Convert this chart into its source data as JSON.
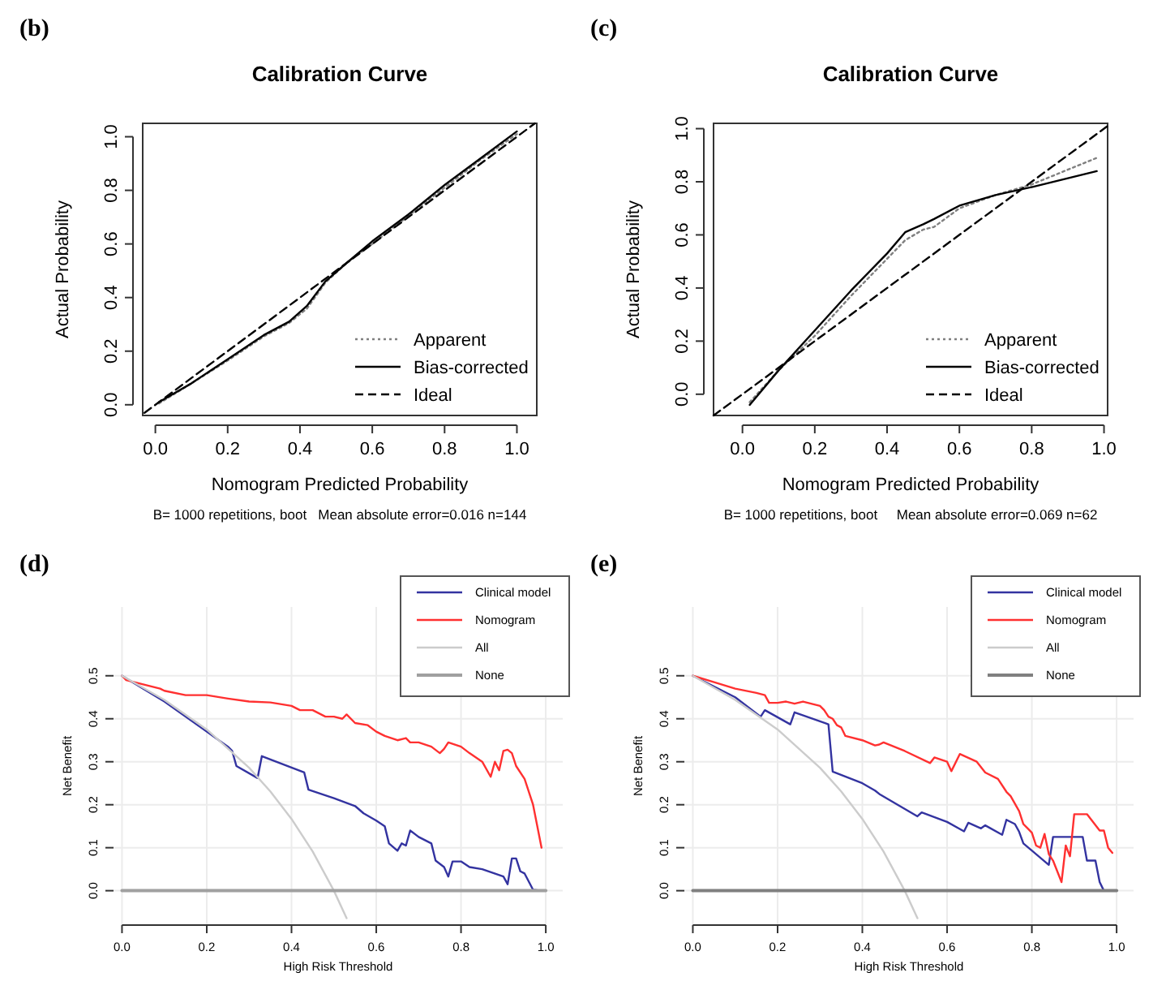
{
  "chart_data": [
    {
      "type": "line",
      "title": "Calibration Curve",
      "xlabel": "Nomogram Predicted Probability",
      "ylabel": "Actual Probability",
      "annotations": [
        "(b)",
        "B= 1000 repetitions, boot   Mean absolute error=0.016 n=144"
      ],
      "xlim": [
        -0.035,
        1.055
      ],
      "ylim": [
        -0.04,
        1.05
      ],
      "xticks": [
        {
          "value": 0,
          "label": "0.0"
        },
        {
          "value": 0.2,
          "label": "0.2"
        },
        {
          "value": 0.4,
          "label": "0.4"
        },
        {
          "value": 0.6,
          "label": "0.6"
        },
        {
          "value": 0.8,
          "label": "0.8"
        },
        {
          "value": 1,
          "label": "1.0"
        }
      ],
      "yticks": [
        {
          "value": 0,
          "label": "0.0"
        },
        {
          "value": 0.2,
          "label": "0.2"
        },
        {
          "value": 0.4,
          "label": "0.4"
        },
        {
          "value": 0.6,
          "label": "0.6"
        },
        {
          "value": 0.8,
          "label": "0.8"
        },
        {
          "value": 1,
          "label": "1.0"
        }
      ],
      "legend": "bottom right",
      "grid": false,
      "series": [
        {
          "name": "Apparent",
          "color": "#808080",
          "line_style": "dotted",
          "x": [
            0.01,
            0.1,
            0.2,
            0.3,
            0.37,
            0.42,
            0.47,
            0.53,
            0.6,
            0.7,
            0.8,
            0.9,
            1.0
          ],
          "values": [
            0.005,
            0.08,
            0.165,
            0.255,
            0.305,
            0.36,
            0.455,
            0.53,
            0.6,
            0.705,
            0.81,
            0.915,
            1.01
          ]
        },
        {
          "name": "Bias-corrected",
          "color": "#000000",
          "line_style": "solid",
          "x": [
            0.01,
            0.1,
            0.2,
            0.3,
            0.37,
            0.42,
            0.47,
            0.53,
            0.6,
            0.7,
            0.8,
            0.9,
            1.0
          ],
          "values": [
            0.01,
            0.08,
            0.17,
            0.26,
            0.31,
            0.37,
            0.46,
            0.53,
            0.61,
            0.71,
            0.82,
            0.92,
            1.02
          ]
        },
        {
          "name": "Ideal",
          "color": "#000000",
          "line_style": "dashed",
          "x": [
            -0.03,
            1.05
          ],
          "values": [
            -0.03,
            1.05
          ]
        }
      ]
    },
    {
      "type": "line",
      "title": "Calibration Curve",
      "xlabel": "Nomogram Predicted Probability",
      "ylabel": "Actual Probability",
      "annotations": [
        "(c)",
        "B= 1000 repetitions, boot     Mean absolute error=0.069 n=62"
      ],
      "xlim": [
        -0.08,
        1.01
      ],
      "ylim": [
        -0.08,
        1.02
      ],
      "xticks": [
        {
          "value": 0,
          "label": "0.0"
        },
        {
          "value": 0.2,
          "label": "0.2"
        },
        {
          "value": 0.4,
          "label": "0.4"
        },
        {
          "value": 0.6,
          "label": "0.6"
        },
        {
          "value": 0.8,
          "label": "0.8"
        },
        {
          "value": 1,
          "label": "1.0"
        }
      ],
      "yticks": [
        {
          "value": 0,
          "label": "0.0"
        },
        {
          "value": 0.2,
          "label": "0.2"
        },
        {
          "value": 0.4,
          "label": "0.4"
        },
        {
          "value": 0.6,
          "label": "0.6"
        },
        {
          "value": 0.8,
          "label": "0.8"
        },
        {
          "value": 1,
          "label": "1.0"
        }
      ],
      "legend": "bottom right",
      "grid": false,
      "series": [
        {
          "name": "Apparent",
          "color": "#808080",
          "line_style": "dotted",
          "x": [
            0.02,
            0.1,
            0.2,
            0.3,
            0.4,
            0.45,
            0.5,
            0.53,
            0.6,
            0.7,
            0.8,
            0.98
          ],
          "values": [
            -0.03,
            0.09,
            0.22,
            0.37,
            0.51,
            0.58,
            0.62,
            0.63,
            0.7,
            0.75,
            0.79,
            0.89
          ]
        },
        {
          "name": "Bias-corrected",
          "color": "#000000",
          "line_style": "solid",
          "x": [
            0.02,
            0.1,
            0.2,
            0.3,
            0.4,
            0.45,
            0.5,
            0.53,
            0.6,
            0.7,
            0.8,
            0.98
          ],
          "values": [
            -0.04,
            0.09,
            0.24,
            0.39,
            0.53,
            0.61,
            0.64,
            0.66,
            0.71,
            0.75,
            0.78,
            0.84
          ]
        },
        {
          "name": "Ideal",
          "color": "#000000",
          "line_style": "dashed",
          "x": [
            -0.08,
            1.01
          ],
          "values": [
            -0.08,
            1.01
          ]
        }
      ]
    },
    {
      "type": "line",
      "xlabel": "High Risk Threshold",
      "ylabel": "Net Benefit",
      "annotations": [
        "(d)"
      ],
      "xlim": [
        -0.02,
        1.04
      ],
      "ylim": [
        -0.08,
        0.66
      ],
      "xticks": [
        {
          "value": 0,
          "label": "0.0"
        },
        {
          "value": 0.2,
          "label": "0.2"
        },
        {
          "value": 0.4,
          "label": "0.4"
        },
        {
          "value": 0.6,
          "label": "0.6"
        },
        {
          "value": 0.8,
          "label": "0.8"
        },
        {
          "value": 1,
          "label": "1.0"
        }
      ],
      "yticks": [
        {
          "value": 0,
          "label": "0.0"
        },
        {
          "value": 0.1,
          "label": "0.1"
        },
        {
          "value": 0.2,
          "label": "0.2"
        },
        {
          "value": 0.3,
          "label": "0.3"
        },
        {
          "value": 0.4,
          "label": "0.4"
        },
        {
          "value": 0.5,
          "label": "0.5"
        }
      ],
      "legend": "top right",
      "grid": true,
      "series": [
        {
          "name": "Clinical model",
          "color": "#3333a0",
          "line_style": "solid",
          "x": [
            0,
            0.05,
            0.1,
            0.15,
            0.2,
            0.25,
            0.26,
            0.27,
            0.32,
            0.33,
            0.43,
            0.44,
            0.5,
            0.55,
            0.57,
            0.6,
            0.62,
            0.63,
            0.65,
            0.66,
            0.67,
            0.68,
            0.7,
            0.73,
            0.74,
            0.76,
            0.77,
            0.78,
            0.8,
            0.82,
            0.85,
            0.9,
            0.91,
            0.92,
            0.93,
            0.94,
            0.95,
            0.97,
            0.99
          ],
          "values": [
            0.5,
            0.47,
            0.44,
            0.405,
            0.37,
            0.335,
            0.325,
            0.29,
            0.262,
            0.313,
            0.275,
            0.235,
            0.215,
            0.197,
            0.18,
            0.163,
            0.15,
            0.11,
            0.093,
            0.11,
            0.105,
            0.14,
            0.125,
            0.11,
            0.07,
            0.055,
            0.033,
            0.068,
            0.068,
            0.055,
            0.05,
            0.033,
            0.015,
            0.075,
            0.075,
            0.045,
            0.04,
            0.002,
            0
          ]
        },
        {
          "name": "Nomogram",
          "color": "#ff3030",
          "line_style": "solid",
          "x": [
            0,
            0.01,
            0.05,
            0.09,
            0.1,
            0.15,
            0.2,
            0.25,
            0.3,
            0.35,
            0.4,
            0.42,
            0.45,
            0.48,
            0.5,
            0.52,
            0.53,
            0.55,
            0.58,
            0.6,
            0.62,
            0.65,
            0.67,
            0.68,
            0.7,
            0.73,
            0.75,
            0.76,
            0.77,
            0.8,
            0.82,
            0.85,
            0.87,
            0.88,
            0.89,
            0.9,
            0.91,
            0.92,
            0.93,
            0.95,
            0.97,
            0.99
          ],
          "values": [
            0.5,
            0.49,
            0.48,
            0.47,
            0.465,
            0.455,
            0.455,
            0.447,
            0.44,
            0.438,
            0.43,
            0.42,
            0.42,
            0.405,
            0.405,
            0.4,
            0.41,
            0.39,
            0.385,
            0.37,
            0.36,
            0.35,
            0.355,
            0.345,
            0.345,
            0.335,
            0.32,
            0.33,
            0.345,
            0.335,
            0.32,
            0.3,
            0.265,
            0.3,
            0.28,
            0.325,
            0.328,
            0.32,
            0.29,
            0.26,
            0.2,
            0.1
          ]
        },
        {
          "name": "All",
          "color": "#cccccc",
          "line_style": "solid",
          "x": [
            0,
            0.1,
            0.2,
            0.3,
            0.35,
            0.4,
            0.45,
            0.5,
            0.53
          ],
          "values": [
            0.5,
            0.444,
            0.375,
            0.286,
            0.231,
            0.167,
            0.091,
            0,
            -0.064
          ]
        },
        {
          "name": "None",
          "color": "#a0a0a0",
          "line_style": "solid",
          "x": [
            0,
            1
          ],
          "values": [
            0,
            0
          ]
        }
      ]
    },
    {
      "type": "line",
      "xlabel": "High Risk Threshold",
      "ylabel": "Net Benefit",
      "annotations": [
        "(e)"
      ],
      "xlim": [
        -0.02,
        1.04
      ],
      "ylim": [
        -0.08,
        0.66
      ],
      "xticks": [
        {
          "value": 0,
          "label": "0.0"
        },
        {
          "value": 0.2,
          "label": "0.2"
        },
        {
          "value": 0.4,
          "label": "0.4"
        },
        {
          "value": 0.6,
          "label": "0.6"
        },
        {
          "value": 0.8,
          "label": "0.8"
        },
        {
          "value": 1,
          "label": "1.0"
        }
      ],
      "yticks": [
        {
          "value": 0,
          "label": "0.0"
        },
        {
          "value": 0.1,
          "label": "0.1"
        },
        {
          "value": 0.2,
          "label": "0.2"
        },
        {
          "value": 0.3,
          "label": "0.3"
        },
        {
          "value": 0.4,
          "label": "0.4"
        },
        {
          "value": 0.5,
          "label": "0.5"
        }
      ],
      "legend": "top right",
      "grid": true,
      "series": [
        {
          "name": "Clinical model",
          "color": "#3333a0",
          "line_style": "solid",
          "x": [
            0,
            0.1,
            0.16,
            0.17,
            0.23,
            0.24,
            0.32,
            0.33,
            0.4,
            0.43,
            0.44,
            0.53,
            0.54,
            0.6,
            0.64,
            0.65,
            0.68,
            0.69,
            0.73,
            0.74,
            0.76,
            0.77,
            0.78,
            0.84,
            0.85,
            0.92,
            0.93,
            0.95,
            0.96,
            0.97,
            0.99
          ],
          "values": [
            0.5,
            0.45,
            0.405,
            0.42,
            0.387,
            0.415,
            0.387,
            0.277,
            0.25,
            0.233,
            0.225,
            0.173,
            0.182,
            0.16,
            0.138,
            0.158,
            0.145,
            0.152,
            0.13,
            0.165,
            0.155,
            0.137,
            0.11,
            0.06,
            0.125,
            0.125,
            0.07,
            0.07,
            0.02,
            0,
            0
          ]
        },
        {
          "name": "Nomogram",
          "color": "#ff3030",
          "line_style": "solid",
          "x": [
            0,
            0.05,
            0.1,
            0.15,
            0.17,
            0.18,
            0.2,
            0.22,
            0.24,
            0.26,
            0.3,
            0.31,
            0.32,
            0.33,
            0.34,
            0.35,
            0.36,
            0.4,
            0.43,
            0.44,
            0.45,
            0.5,
            0.56,
            0.57,
            0.6,
            0.61,
            0.63,
            0.67,
            0.69,
            0.72,
            0.74,
            0.75,
            0.77,
            0.78,
            0.8,
            0.81,
            0.82,
            0.83,
            0.84,
            0.85,
            0.87,
            0.88,
            0.89,
            0.9,
            0.93,
            0.96,
            0.97,
            0.98,
            0.99
          ],
          "values": [
            0.5,
            0.485,
            0.47,
            0.46,
            0.455,
            0.437,
            0.437,
            0.44,
            0.435,
            0.44,
            0.43,
            0.42,
            0.405,
            0.4,
            0.385,
            0.38,
            0.36,
            0.35,
            0.338,
            0.34,
            0.345,
            0.325,
            0.297,
            0.31,
            0.3,
            0.278,
            0.318,
            0.3,
            0.275,
            0.26,
            0.23,
            0.22,
            0.185,
            0.155,
            0.135,
            0.105,
            0.1,
            0.132,
            0.085,
            0.07,
            0.02,
            0.105,
            0.08,
            0.178,
            0.178,
            0.14,
            0.14,
            0.1,
            0.088
          ]
        },
        {
          "name": "All",
          "color": "#cccccc",
          "line_style": "solid",
          "x": [
            0,
            0.1,
            0.2,
            0.3,
            0.35,
            0.4,
            0.45,
            0.5,
            0.53
          ],
          "values": [
            0.5,
            0.444,
            0.375,
            0.286,
            0.231,
            0.167,
            0.091,
            0,
            -0.064
          ]
        },
        {
          "name": "None",
          "color": "#808080",
          "line_style": "solid",
          "x": [
            0,
            1
          ],
          "values": [
            0,
            0
          ]
        }
      ]
    }
  ]
}
